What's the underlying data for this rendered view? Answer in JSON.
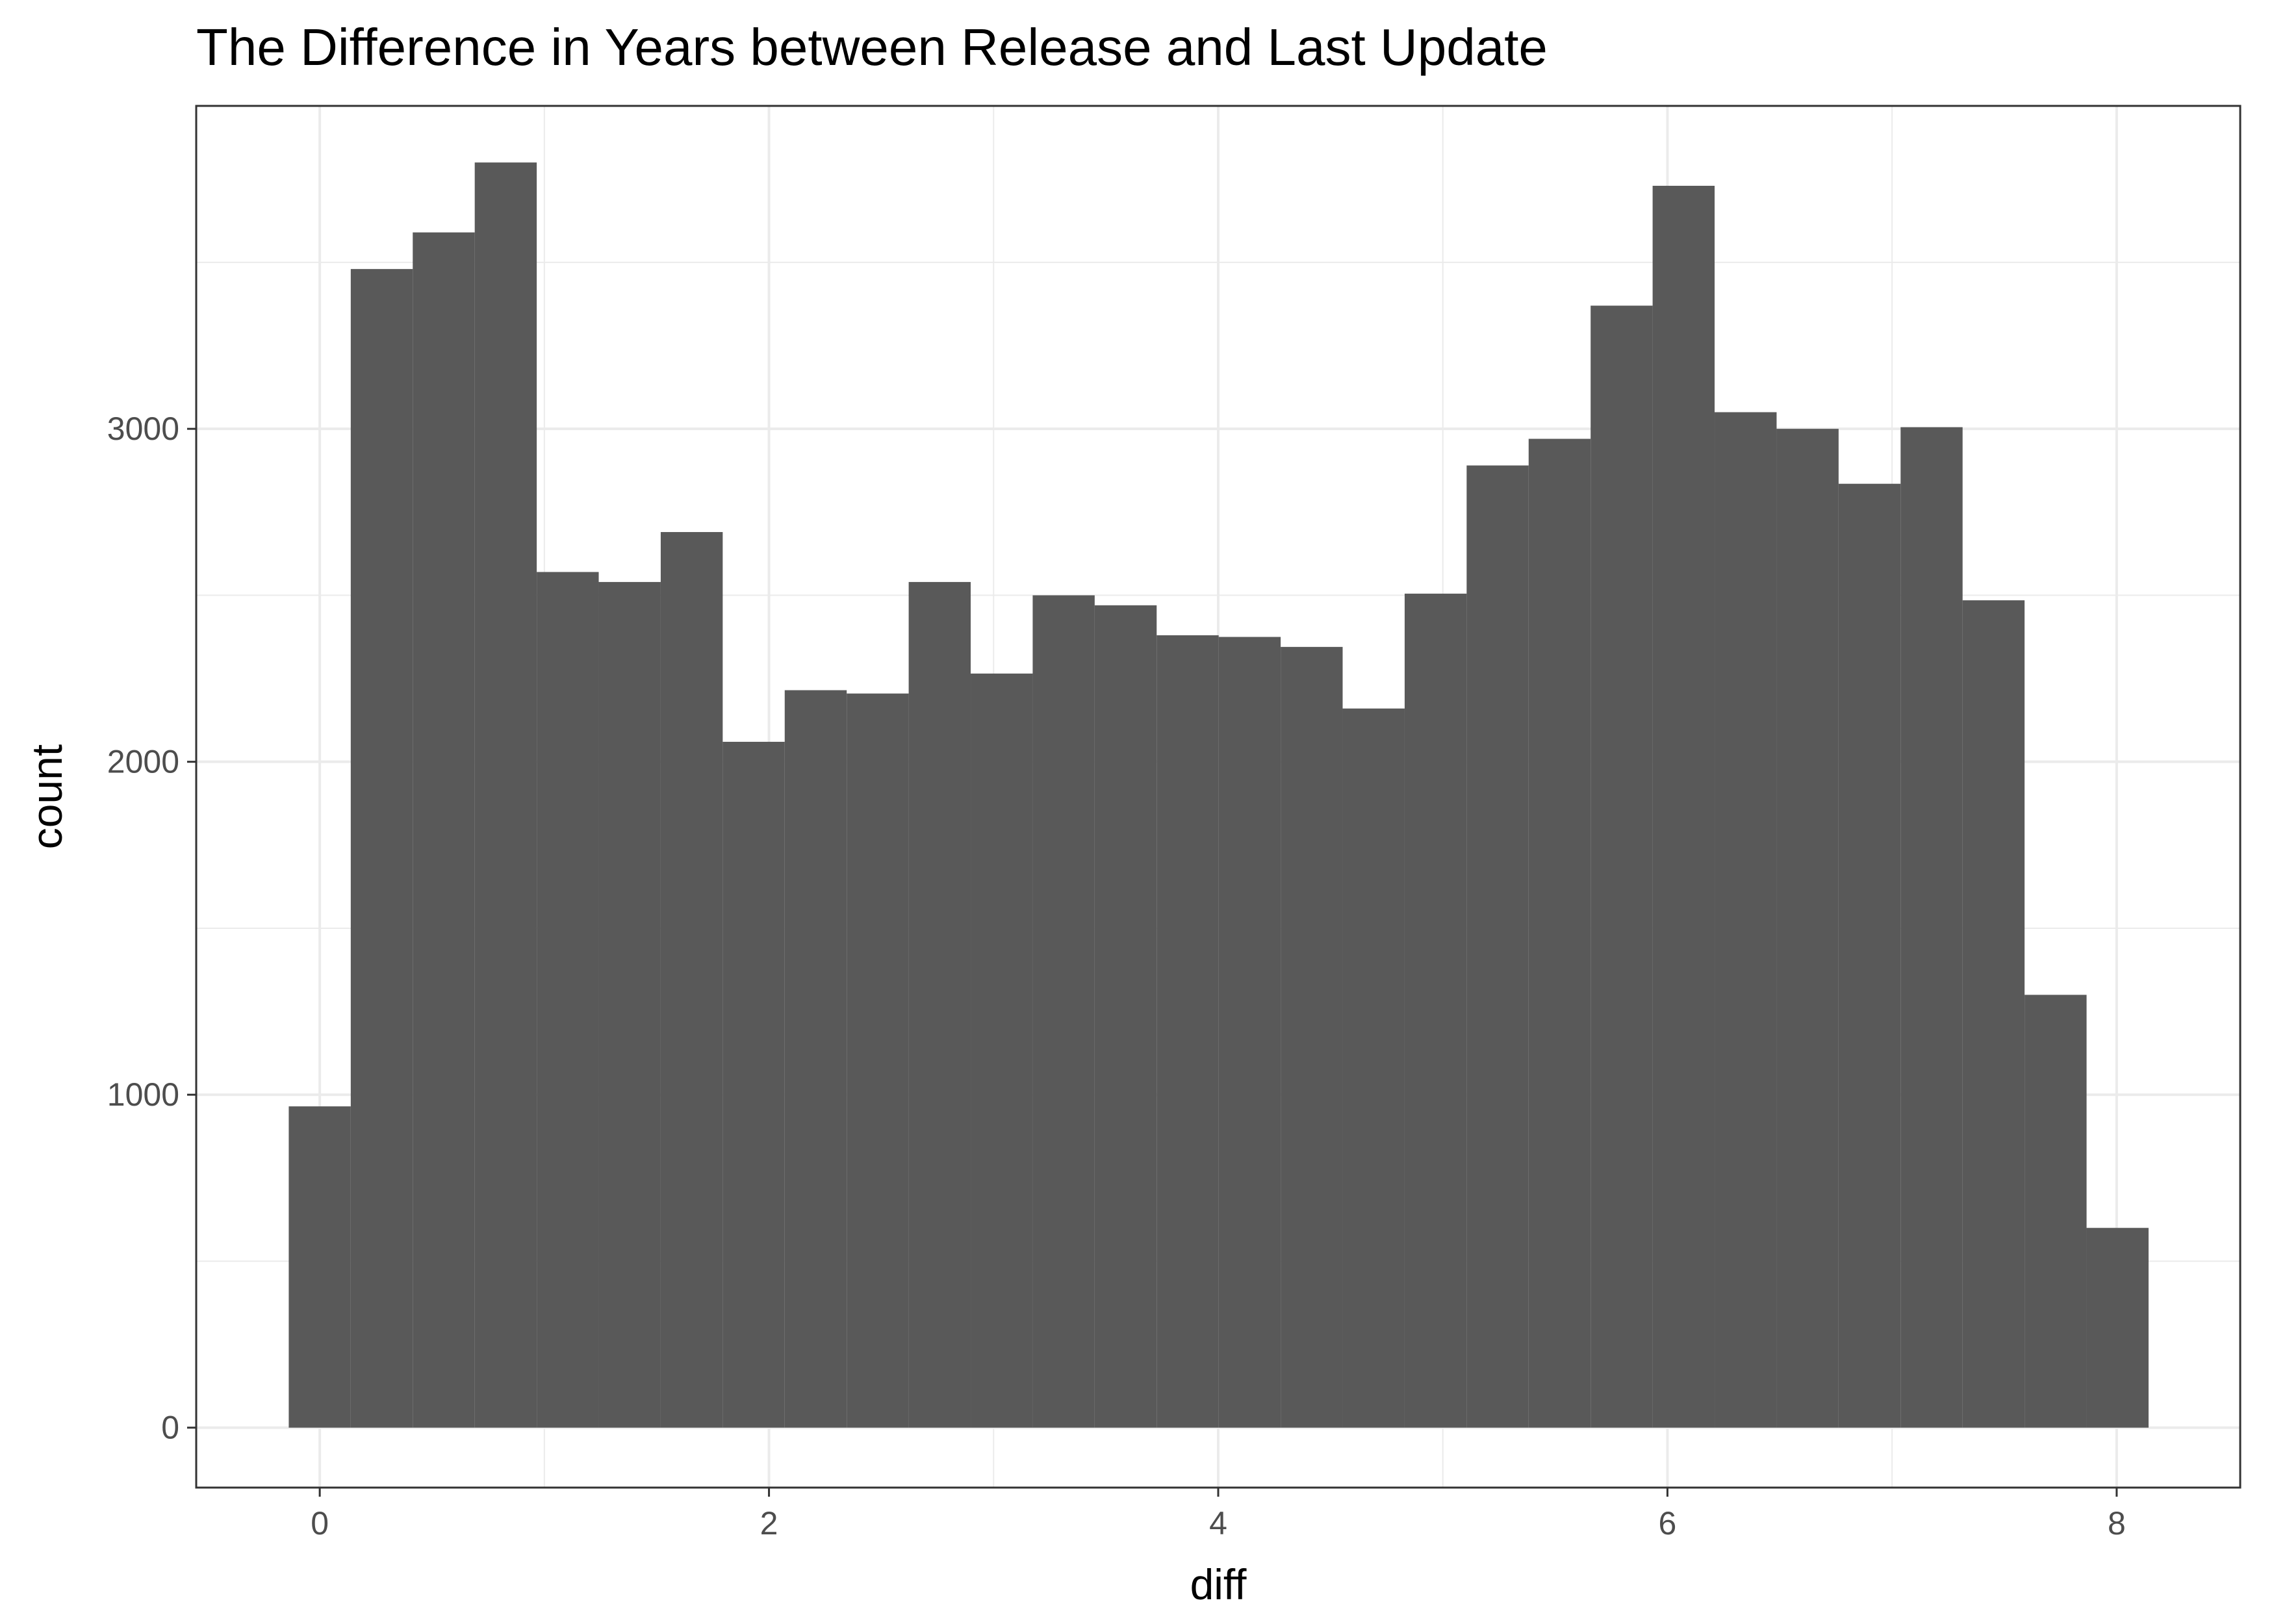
{
  "chart_data": {
    "type": "bar",
    "title": "The Difference in Years between Release and Last Update",
    "xlabel": "diff",
    "ylabel": "count",
    "xlim": [
      -0.55,
      8.55
    ],
    "ylim": [
      -180,
      3970
    ],
    "x_ticks": [
      0,
      2,
      4,
      6,
      8
    ],
    "y_ticks": [
      0,
      1000,
      2000,
      3000
    ],
    "x_tick_labels": [
      "0",
      "2",
      "4",
      "6",
      "8"
    ],
    "y_tick_labels": [
      "0",
      "1000",
      "2000",
      "3000"
    ],
    "grid": true,
    "legend": "none",
    "bar_color": "#595959",
    "bin_width": 0.276,
    "bins": [
      {
        "x": 0.0,
        "count": 965
      },
      {
        "x": 0.276,
        "count": 3480
      },
      {
        "x": 0.552,
        "count": 3590
      },
      {
        "x": 0.828,
        "count": 3800
      },
      {
        "x": 1.104,
        "count": 2570
      },
      {
        "x": 1.38,
        "count": 2540
      },
      {
        "x": 1.656,
        "count": 2690
      },
      {
        "x": 1.932,
        "count": 2060
      },
      {
        "x": 2.208,
        "count": 2215
      },
      {
        "x": 2.484,
        "count": 2205
      },
      {
        "x": 2.76,
        "count": 2540
      },
      {
        "x": 3.036,
        "count": 2265
      },
      {
        "x": 3.312,
        "count": 2500
      },
      {
        "x": 3.588,
        "count": 2470
      },
      {
        "x": 3.864,
        "count": 2380
      },
      {
        "x": 4.14,
        "count": 2375
      },
      {
        "x": 4.416,
        "count": 2345
      },
      {
        "x": 4.692,
        "count": 2160
      },
      {
        "x": 4.968,
        "count": 2505
      },
      {
        "x": 5.244,
        "count": 2890
      },
      {
        "x": 5.52,
        "count": 2970
      },
      {
        "x": 5.796,
        "count": 3370
      },
      {
        "x": 6.072,
        "count": 3730
      },
      {
        "x": 6.348,
        "count": 3050
      },
      {
        "x": 6.624,
        "count": 3000
      },
      {
        "x": 6.9,
        "count": 2835
      },
      {
        "x": 7.176,
        "count": 3005
      },
      {
        "x": 7.452,
        "count": 2485
      },
      {
        "x": 7.728,
        "count": 1300
      },
      {
        "x": 8.004,
        "count": 600
      }
    ]
  }
}
